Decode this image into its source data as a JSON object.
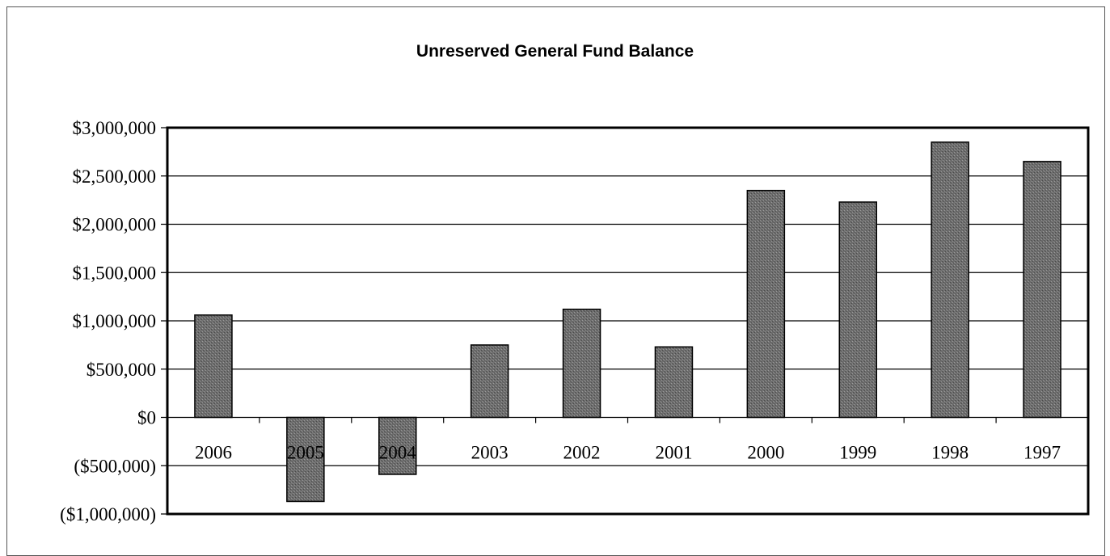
{
  "chart_data": {
    "type": "bar",
    "title": "Unreserved General Fund Balance",
    "xlabel": "",
    "ylabel": "",
    "categories": [
      "2006",
      "2005",
      "2004",
      "2003",
      "2002",
      "2001",
      "2000",
      "1999",
      "1998",
      "1997"
    ],
    "values": [
      1060000,
      -870000,
      -590000,
      750000,
      1120000,
      730000,
      2350000,
      2230000,
      2850000,
      2650000
    ],
    "ylim": [
      -1000000,
      3000000
    ],
    "y_ticks": [
      3000000,
      2500000,
      2000000,
      1500000,
      1000000,
      500000,
      0,
      -500000,
      -1000000
    ],
    "y_tick_labels": [
      "$3,000,000",
      "$2,500,000",
      "$2,000,000",
      "$1,500,000",
      "$1,000,000",
      "$500,000",
      "$0",
      "($500,000)",
      "($1,000,000)"
    ],
    "grid": true,
    "legend": "none",
    "bar_color": "#6e6e6e"
  }
}
